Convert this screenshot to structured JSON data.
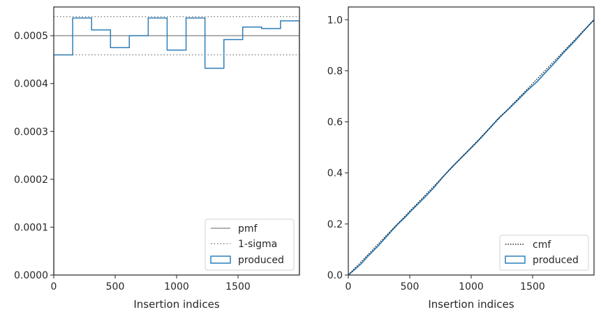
{
  "chart_data": [
    {
      "type": "step",
      "xlabel": "Insertion indices",
      "ylabel": "",
      "title": "",
      "xlim": [
        0,
        2000
      ],
      "ylim": [
        0,
        0.00056
      ],
      "xticks": [
        0,
        500,
        1000,
        1500
      ],
      "xtick_labels": [
        "0",
        "500",
        "1000",
        "1500"
      ],
      "yticks": [
        0,
        0.0001,
        0.0002,
        0.0003,
        0.0004,
        0.0005
      ],
      "ytick_labels": [
        "0.0000",
        "0.0001",
        "0.0002",
        "0.0003",
        "0.0004",
        "0.0005"
      ],
      "pmf": 0.0005,
      "sigma_upper": 0.00054,
      "sigma_lower": 0.00046,
      "bin_edges": [
        0,
        154,
        308,
        462,
        615,
        769,
        923,
        1077,
        1231,
        1385,
        1538,
        1692,
        1846,
        2000
      ],
      "produced": [
        0.00046,
        0.000537,
        0.000512,
        0.000475,
        0.0005,
        0.000537,
        0.00047,
        0.000537,
        0.000432,
        0.000492,
        0.000518,
        0.000515,
        0.000531
      ],
      "legend": {
        "placement": "lower-right",
        "entries": [
          "pmf",
          "1-sigma",
          "produced"
        ]
      },
      "colors": {
        "pmf": "#808080",
        "sigma": "#808080",
        "produced": "#2f7eb8"
      }
    },
    {
      "type": "line",
      "xlabel": "Insertion indices",
      "ylabel": "",
      "title": "",
      "xlim": [
        0,
        2000
      ],
      "ylim": [
        0,
        1.05
      ],
      "xticks": [
        0,
        500,
        1000,
        1500
      ],
      "xtick_labels": [
        "0",
        "500",
        "1000",
        "1500"
      ],
      "yticks": [
        0,
        0.2,
        0.4,
        0.6,
        0.8,
        1.0
      ],
      "ytick_labels": [
        "0.0",
        "0.2",
        "0.4",
        "0.6",
        "0.8",
        "1.0"
      ],
      "cmf": {
        "x": [
          0,
          2000
        ],
        "y": [
          0,
          1.0
        ]
      },
      "produced": {
        "x": [
          0,
          50,
          100,
          154,
          200,
          250,
          308,
          350,
          400,
          462,
          500,
          550,
          615,
          700,
          769,
          850,
          923,
          1000,
          1077,
          1150,
          1231,
          1300,
          1385,
          1450,
          1538,
          1600,
          1692,
          1750,
          1846,
          1900,
          2000
        ],
        "y": [
          0,
          0.021,
          0.042,
          0.071,
          0.093,
          0.118,
          0.149,
          0.172,
          0.198,
          0.226,
          0.246,
          0.27,
          0.301,
          0.344,
          0.384,
          0.426,
          0.461,
          0.498,
          0.536,
          0.575,
          0.618,
          0.648,
          0.688,
          0.72,
          0.758,
          0.791,
          0.838,
          0.87,
          0.918,
          0.948,
          1.0
        ]
      },
      "legend": {
        "placement": "lower-right",
        "entries": [
          "cmf",
          "produced"
        ]
      },
      "colors": {
        "cmf": "#000000",
        "produced": "#2f7eb8"
      }
    }
  ]
}
